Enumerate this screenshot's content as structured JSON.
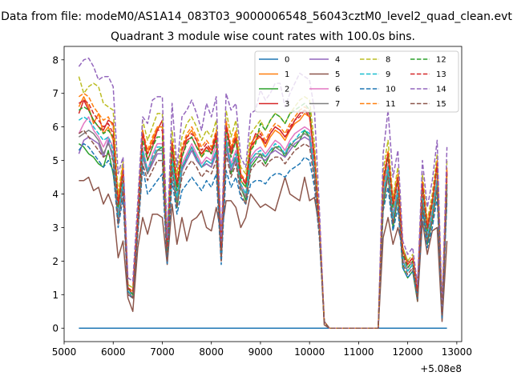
{
  "figure": {
    "suptitle": "Data from file: modeM0/AS1A14_083T03_9000006548_56043cztM0_level2_quad_clean.evt"
  },
  "chart_data": {
    "type": "line",
    "title": "Quadrant 3 module wise count rates with 100.0s bins.",
    "xlabel": "",
    "ylabel": "",
    "x_offset_label": "+5.08e8",
    "xlim": [
      5000,
      13100
    ],
    "ylim": [
      -0.4,
      8.4
    ],
    "xticks": [
      5000,
      6000,
      7000,
      8000,
      9000,
      10000,
      11000,
      12000,
      13000
    ],
    "yticks": [
      0,
      1,
      2,
      3,
      4,
      5,
      6,
      7,
      8
    ],
    "grid": false,
    "legend_position": "top-right",
    "legend_columns": 4,
    "x": [
      5300,
      5400,
      5500,
      5600,
      5700,
      5800,
      5900,
      6000,
      6100,
      6200,
      6300,
      6400,
      6500,
      6600,
      6700,
      6800,
      6900,
      7000,
      7100,
      7200,
      7300,
      7400,
      7500,
      7600,
      7700,
      7800,
      7900,
      8000,
      8100,
      8200,
      8300,
      8400,
      8500,
      8600,
      8700,
      8800,
      8900,
      9000,
      9100,
      9200,
      9300,
      9400,
      9500,
      9600,
      9700,
      9800,
      9900,
      10000,
      10100,
      10200,
      10300,
      10400,
      11400,
      11500,
      11600,
      11700,
      11800,
      11900,
      12000,
      12100,
      12200,
      12300,
      12400,
      12500,
      12600,
      12700,
      12800
    ],
    "series": [
      {
        "name": "0",
        "color": "#1f77b4",
        "dash": "solid",
        "values": [
          0,
          0,
          0,
          0,
          0,
          0,
          0,
          0,
          0,
          0,
          0,
          0,
          0,
          0,
          0,
          0,
          0,
          0,
          0,
          0,
          0,
          0,
          0,
          0,
          0,
          0,
          0,
          0,
          0,
          0,
          0,
          0,
          0,
          0,
          0,
          0,
          0,
          0,
          0,
          0,
          0,
          0,
          0,
          0,
          0,
          0,
          0,
          0,
          0,
          0,
          0,
          0,
          0,
          0,
          0,
          0,
          0,
          0,
          0,
          0,
          0,
          0,
          0,
          0,
          0,
          0,
          0
        ]
      },
      {
        "name": "1",
        "color": "#ff7f0e",
        "dash": "solid",
        "values": [
          6.6,
          6.9,
          6.6,
          6.1,
          6.4,
          5.8,
          6.0,
          5.6,
          3.8,
          4.9,
          1.2,
          1.1,
          3.2,
          5.8,
          5.2,
          5.6,
          6.0,
          6.0,
          2.4,
          5.5,
          4.2,
          5.3,
          5.7,
          5.9,
          5.6,
          5.1,
          5.4,
          5.3,
          5.8,
          2.4,
          6.0,
          5.3,
          5.8,
          4.4,
          4.2,
          5.3,
          5.6,
          5.7,
          5.4,
          5.7,
          5.9,
          5.8,
          5.6,
          5.9,
          6.1,
          6.2,
          6.4,
          6.3,
          5.1,
          3.0,
          0.2,
          0,
          0,
          4.2,
          5.2,
          3.6,
          4.5,
          2.1,
          1.8,
          2.0,
          1.1,
          4.2,
          2.9,
          3.7,
          4.9,
          0.5,
          4.6
        ]
      },
      {
        "name": "2",
        "color": "#2ca02c",
        "dash": "solid",
        "values": [
          5.5,
          5.4,
          5.2,
          5.1,
          4.9,
          4.8,
          5.3,
          4.6,
          3.5,
          4.3,
          1.1,
          0.9,
          3.1,
          5.3,
          4.6,
          5.0,
          5.3,
          5.4,
          2.0,
          4.9,
          3.6,
          4.7,
          5.1,
          5.4,
          5.0,
          4.8,
          4.9,
          4.8,
          5.3,
          2.2,
          5.6,
          4.6,
          5.1,
          4.2,
          3.8,
          4.8,
          5.0,
          5.2,
          4.9,
          5.2,
          5.4,
          5.4,
          5.1,
          5.5,
          5.4,
          5.6,
          5.9,
          5.7,
          4.7,
          3.0,
          0.2,
          0,
          0,
          3.6,
          4.6,
          3.0,
          3.9,
          1.8,
          1.5,
          1.7,
          0.8,
          3.6,
          2.5,
          3.2,
          4.2,
          0.4,
          4.0
        ]
      },
      {
        "name": "3",
        "color": "#d62728",
        "dash": "solid",
        "values": [
          6.4,
          6.8,
          6.5,
          6.2,
          6.0,
          5.9,
          6.2,
          6.1,
          3.6,
          4.6,
          1.2,
          1.0,
          3.3,
          5.9,
          5.0,
          5.4,
          5.9,
          6.2,
          2.3,
          5.4,
          4.2,
          5.1,
          5.6,
          5.7,
          5.4,
          5.2,
          5.4,
          5.2,
          5.7,
          2.3,
          6.1,
          5.2,
          5.6,
          4.6,
          4.3,
          5.4,
          5.8,
          5.7,
          5.5,
          5.8,
          6.0,
          5.9,
          5.7,
          5.9,
          6.2,
          6.4,
          6.5,
          6.4,
          5.0,
          3.2,
          0.2,
          0,
          0,
          4.3,
          5.2,
          3.8,
          4.4,
          2.3,
          1.9,
          2.1,
          1.2,
          4.3,
          3.0,
          3.8,
          4.9,
          0.5,
          4.7
        ]
      },
      {
        "name": "4",
        "color": "#9467bd",
        "dash": "solid",
        "values": [
          5.2,
          5.6,
          5.7,
          5.6,
          5.5,
          5.1,
          5.6,
          5.0,
          3.2,
          4.3,
          1.0,
          0.9,
          3.0,
          5.1,
          4.6,
          4.9,
          5.2,
          5.2,
          2.0,
          4.9,
          3.8,
          4.7,
          5.0,
          5.3,
          5.0,
          4.8,
          4.9,
          4.8,
          5.2,
          2.1,
          5.4,
          4.7,
          5.0,
          4.2,
          3.9,
          4.9,
          5.1,
          5.1,
          5.0,
          5.2,
          5.3,
          5.2,
          5.1,
          5.3,
          5.5,
          5.6,
          5.7,
          5.6,
          4.6,
          2.9,
          0.2,
          0,
          0,
          3.9,
          4.7,
          3.2,
          4.1,
          2.0,
          1.7,
          1.9,
          1.0,
          3.9,
          2.6,
          3.4,
          4.3,
          0.4,
          4.2
        ]
      },
      {
        "name": "5",
        "color": "#8c564b",
        "dash": "solid",
        "values": [
          4.4,
          4.4,
          4.5,
          4.1,
          4.2,
          3.7,
          4.0,
          3.6,
          2.1,
          2.6,
          0.9,
          0.5,
          2.4,
          3.3,
          2.8,
          3.4,
          3.4,
          3.3,
          1.9,
          3.7,
          2.5,
          3.3,
          2.6,
          3.2,
          3.3,
          3.5,
          3.0,
          2.9,
          3.6,
          2.8,
          3.8,
          3.8,
          3.6,
          3.0,
          3.3,
          4.0,
          3.8,
          3.6,
          3.7,
          3.6,
          3.5,
          4.0,
          4.5,
          4.0,
          3.9,
          3.8,
          4.5,
          3.8,
          3.9,
          3.0,
          0.1,
          0,
          0,
          2.7,
          3.3,
          2.5,
          3.0,
          2.4,
          2.0,
          1.9,
          0.8,
          3.2,
          2.2,
          2.9,
          3.0,
          0.2,
          2.6
        ]
      },
      {
        "name": "6",
        "color": "#e377c2",
        "dash": "solid",
        "values": [
          5.8,
          6.1,
          6.3,
          5.9,
          5.7,
          5.4,
          5.7,
          5.4,
          3.4,
          4.5,
          1.1,
          1.0,
          3.1,
          5.4,
          4.7,
          5.2,
          5.5,
          5.5,
          2.2,
          5.1,
          3.9,
          4.9,
          5.2,
          5.5,
          5.2,
          4.9,
          5.1,
          5.0,
          5.5,
          2.2,
          5.7,
          4.9,
          5.3,
          4.3,
          4.0,
          5.1,
          5.3,
          5.4,
          5.2,
          5.4,
          5.6,
          5.5,
          5.3,
          5.6,
          5.8,
          5.9,
          6.0,
          5.9,
          4.8,
          3.0,
          0.2,
          0,
          0,
          4.0,
          4.9,
          3.4,
          4.2,
          2.1,
          1.8,
          2.0,
          1.0,
          4.0,
          2.8,
          3.5,
          4.5,
          0.4,
          4.4
        ]
      },
      {
        "name": "7",
        "color": "#7f7f7f",
        "dash": "solid",
        "values": [
          5.7,
          5.8,
          5.9,
          5.8,
          5.6,
          5.2,
          5.5,
          5.2,
          3.3,
          4.4,
          1.1,
          0.9,
          3.0,
          5.2,
          4.6,
          5.0,
          5.3,
          5.3,
          2.1,
          5.0,
          3.8,
          4.8,
          5.1,
          5.4,
          5.1,
          4.8,
          5.0,
          4.9,
          5.3,
          2.1,
          5.5,
          4.8,
          5.1,
          4.2,
          3.9,
          5.0,
          5.2,
          5.2,
          5.1,
          5.3,
          5.4,
          5.3,
          5.2,
          5.4,
          5.6,
          5.7,
          5.8,
          5.7,
          4.7,
          2.9,
          0.2,
          0,
          0,
          3.9,
          4.7,
          3.3,
          4.1,
          2.0,
          1.7,
          1.9,
          1.0,
          3.9,
          2.7,
          3.4,
          4.4,
          0.4,
          4.3
        ]
      },
      {
        "name": "8",
        "color": "#bcbd22",
        "dash": "dashed",
        "values": [
          7.5,
          7.0,
          7.2,
          7.3,
          7.2,
          6.7,
          6.6,
          6.5,
          4.0,
          5.0,
          1.3,
          1.2,
          3.6,
          6.2,
          5.6,
          6.0,
          6.4,
          6.4,
          2.6,
          5.9,
          4.6,
          5.7,
          6.1,
          6.3,
          6.0,
          5.6,
          5.9,
          5.7,
          6.2,
          2.6,
          6.5,
          5.7,
          6.2,
          4.8,
          4.6,
          5.8,
          6.0,
          6.2,
          5.9,
          6.2,
          6.4,
          6.3,
          6.1,
          6.4,
          6.6,
          6.8,
          6.9,
          6.8,
          5.5,
          3.3,
          0.2,
          0,
          0,
          4.7,
          5.6,
          3.9,
          4.8,
          2.4,
          2.0,
          2.2,
          1.2,
          4.6,
          3.2,
          4.0,
          5.2,
          0.5,
          5.0
        ]
      },
      {
        "name": "9",
        "color": "#17becf",
        "dash": "dashed",
        "values": [
          6.2,
          6.3,
          6.2,
          6.0,
          5.8,
          5.6,
          5.7,
          5.3,
          3.3,
          4.3,
          1.1,
          1.0,
          3.1,
          5.3,
          4.7,
          5.1,
          5.4,
          5.4,
          2.2,
          5.0,
          3.9,
          4.8,
          5.1,
          5.4,
          5.1,
          4.8,
          5.0,
          4.9,
          5.3,
          2.2,
          5.6,
          4.8,
          5.2,
          4.3,
          4.0,
          5.0,
          5.2,
          5.3,
          5.1,
          5.3,
          5.5,
          5.4,
          5.2,
          5.5,
          5.6,
          5.8,
          5.9,
          5.8,
          4.7,
          3.0,
          0.2,
          0,
          0,
          4.0,
          4.8,
          3.3,
          4.1,
          2.0,
          1.7,
          1.9,
          1.0,
          3.9,
          2.7,
          3.4,
          4.4,
          0.4,
          4.3
        ]
      },
      {
        "name": "10",
        "color": "#1f77b4",
        "dash": "dashed",
        "values": [
          5.3,
          5.5,
          5.4,
          5.2,
          5.0,
          4.8,
          5.0,
          4.7,
          3.0,
          3.9,
          1.0,
          0.9,
          2.8,
          4.8,
          4.0,
          4.2,
          4.4,
          4.6,
          1.9,
          4.4,
          3.4,
          4.1,
          4.3,
          4.5,
          4.3,
          4.1,
          4.4,
          4.2,
          4.6,
          1.9,
          4.7,
          4.2,
          4.5,
          3.9,
          3.7,
          4.3,
          4.4,
          4.4,
          4.3,
          4.5,
          4.6,
          4.6,
          4.5,
          4.7,
          4.8,
          4.9,
          5.1,
          5.0,
          4.2,
          2.7,
          0.2,
          0,
          0,
          3.5,
          4.2,
          2.9,
          3.6,
          1.8,
          1.5,
          1.7,
          0.9,
          3.5,
          2.4,
          3.0,
          3.9,
          0.3,
          3.8
        ]
      },
      {
        "name": "11",
        "color": "#ff7f0e",
        "dash": "dashed",
        "values": [
          6.9,
          7.0,
          6.9,
          6.6,
          6.4,
          6.2,
          6.3,
          6.0,
          3.8,
          4.8,
          1.2,
          1.1,
          3.4,
          5.9,
          5.3,
          5.7,
          6.0,
          6.0,
          2.5,
          5.6,
          4.4,
          5.4,
          5.8,
          6.0,
          5.7,
          5.4,
          5.6,
          5.4,
          5.9,
          2.4,
          6.2,
          5.4,
          5.9,
          4.6,
          4.4,
          5.5,
          5.7,
          5.9,
          5.6,
          5.9,
          6.1,
          6.0,
          5.8,
          6.1,
          6.3,
          6.5,
          6.6,
          6.5,
          5.2,
          3.2,
          0.2,
          0,
          0,
          4.5,
          5.3,
          3.8,
          4.6,
          2.3,
          1.9,
          2.1,
          1.2,
          4.4,
          3.1,
          3.8,
          5.0,
          0.5,
          4.8
        ]
      },
      {
        "name": "12",
        "color": "#2ca02c",
        "dash": "dashed",
        "values": [
          6.5,
          6.6,
          6.5,
          6.2,
          6.0,
          5.8,
          5.9,
          5.7,
          3.6,
          4.6,
          1.2,
          1.0,
          3.3,
          5.6,
          5.0,
          5.4,
          5.7,
          5.7,
          2.3,
          5.3,
          4.1,
          5.1,
          5.5,
          5.7,
          5.4,
          5.1,
          5.3,
          5.2,
          5.6,
          2.3,
          5.9,
          5.1,
          5.6,
          4.4,
          4.2,
          5.3,
          5.5,
          6.1,
          5.9,
          6.2,
          6.4,
          6.3,
          6.1,
          6.4,
          6.5,
          6.6,
          6.7,
          6.5,
          5.0,
          3.1,
          0.2,
          0,
          0,
          4.3,
          5.1,
          3.6,
          4.4,
          2.2,
          1.8,
          2.0,
          1.1,
          4.2,
          2.9,
          3.7,
          4.8,
          0.5,
          4.6
        ]
      },
      {
        "name": "13",
        "color": "#d62728",
        "dash": "dashed",
        "values": [
          6.7,
          6.8,
          6.7,
          6.4,
          6.2,
          6.0,
          6.1,
          5.8,
          3.7,
          4.7,
          1.2,
          1.1,
          3.3,
          5.8,
          5.2,
          5.5,
          5.9,
          5.9,
          2.4,
          5.5,
          4.3,
          5.3,
          5.7,
          5.8,
          5.6,
          5.3,
          5.5,
          5.3,
          5.8,
          2.4,
          6.0,
          5.3,
          5.7,
          4.5,
          4.3,
          5.4,
          5.6,
          5.8,
          5.5,
          5.8,
          6.0,
          5.9,
          5.7,
          6.0,
          6.2,
          6.3,
          6.5,
          6.3,
          5.1,
          3.1,
          0.2,
          0,
          0,
          4.4,
          5.2,
          3.7,
          4.5,
          2.3,
          1.9,
          2.1,
          1.1,
          4.3,
          3.0,
          3.8,
          4.9,
          0.5,
          4.7
        ]
      },
      {
        "name": "14",
        "color": "#9467bd",
        "dash": "dashed",
        "values": [
          7.8,
          8.0,
          8.05,
          7.8,
          7.4,
          7.5,
          7.5,
          7.2,
          4.6,
          5.1,
          1.5,
          1.4,
          3.8,
          6.3,
          6.1,
          6.8,
          6.9,
          6.9,
          2.7,
          6.7,
          4.8,
          6.3,
          6.5,
          6.8,
          6.4,
          5.9,
          6.7,
          6.3,
          6.9,
          2.6,
          7.0,
          6.5,
          6.7,
          5.1,
          4.8,
          6.4,
          6.5,
          7.1,
          6.8,
          7.0,
          7.3,
          7.3,
          6.6,
          7.0,
          7.3,
          7.6,
          7.5,
          7.4,
          6.5,
          3.6,
          0.2,
          0,
          0,
          5.2,
          6.5,
          4.5,
          5.3,
          2.6,
          2.2,
          2.4,
          1.3,
          5.0,
          3.6,
          4.4,
          5.6,
          0.6,
          5.4
        ]
      },
      {
        "name": "15",
        "color": "#8c564b",
        "dash": "dashed",
        "values": [
          5.8,
          5.9,
          5.7,
          5.5,
          5.3,
          5.1,
          5.2,
          5.0,
          3.1,
          4.1,
          1.0,
          0.9,
          2.9,
          4.9,
          4.4,
          4.7,
          5.0,
          5.0,
          2.0,
          4.7,
          3.6,
          4.5,
          4.8,
          5.0,
          4.8,
          4.5,
          4.7,
          4.6,
          5.0,
          2.0,
          5.2,
          4.5,
          4.9,
          4.0,
          3.7,
          4.7,
          4.9,
          5.0,
          4.8,
          5.0,
          5.1,
          5.1,
          4.9,
          5.1,
          5.3,
          5.4,
          5.5,
          5.4,
          4.4,
          2.8,
          0.2,
          0,
          0,
          3.7,
          4.5,
          3.1,
          3.9,
          1.9,
          1.6,
          1.8,
          0.9,
          3.7,
          2.6,
          3.2,
          4.2,
          0.4,
          4.1
        ]
      }
    ]
  }
}
